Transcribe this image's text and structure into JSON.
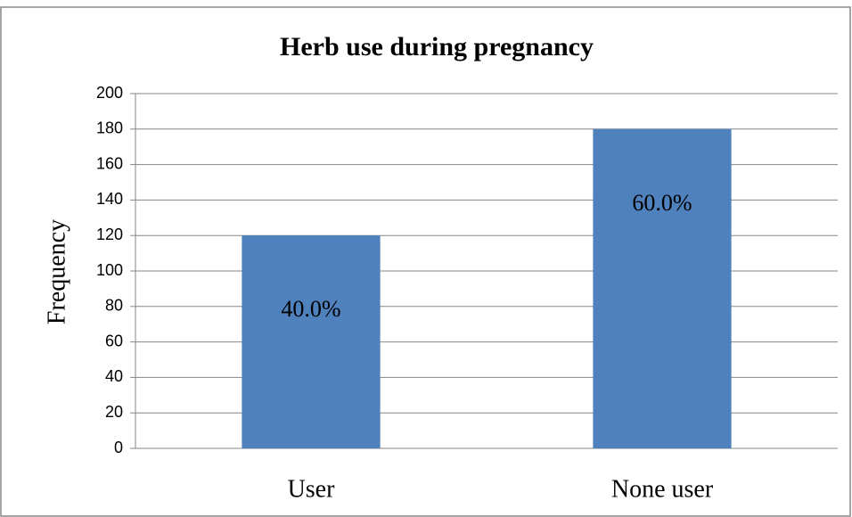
{
  "chart_data": {
    "type": "bar",
    "title": "Herb use during pregnancy",
    "y_label": "Frequency",
    "categories": [
      "User",
      "None user"
    ],
    "values": [
      120,
      180
    ],
    "annotations": [
      "40.0%",
      "60.0%"
    ],
    "color": "#4f81bd",
    "ylim": [
      0,
      200
    ],
    "yticks": [
      0,
      20,
      40,
      60,
      80,
      100,
      120,
      140,
      160,
      180,
      200
    ],
    "grid": true
  }
}
